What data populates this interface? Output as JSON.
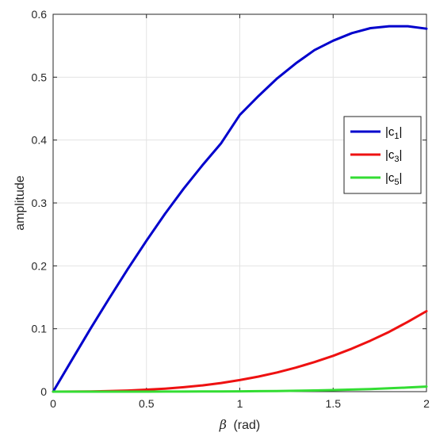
{
  "chart_data": {
    "type": "line",
    "title": "",
    "xlabel_symbol": "β",
    "xlabel": "(rad)",
    "ylabel": "amplitude",
    "xlim": [
      0,
      2
    ],
    "ylim": [
      0,
      0.6
    ],
    "xticks": [
      "0",
      "0.5",
      "1",
      "1.5",
      "2"
    ],
    "yticks": [
      "0",
      "0.1",
      "0.2",
      "0.3",
      "0.4",
      "0.5",
      "0.6"
    ],
    "grid": true,
    "legend_position": "right",
    "series": [
      {
        "name": "|c1|",
        "name_base": "|c",
        "name_sub": "1",
        "name_end": "|",
        "color": "#0000cc",
        "x": [
          0,
          0.1,
          0.2,
          0.3,
          0.4,
          0.5,
          0.6,
          0.7,
          0.8,
          0.9,
          1.0,
          1.1,
          1.2,
          1.3,
          1.4,
          1.5,
          1.6,
          1.7,
          1.8,
          1.9,
          2.0
        ],
        "y": [
          0,
          0.05,
          0.1,
          0.148,
          0.195,
          0.24,
          0.283,
          0.323,
          0.36,
          0.395,
          0.44,
          0.47,
          0.498,
          0.522,
          0.543,
          0.558,
          0.57,
          0.578,
          0.581,
          0.581,
          0.577
        ]
      },
      {
        "name": "|c3|",
        "name_base": "|c",
        "name_sub": "3",
        "name_end": "|",
        "color": "#ee1111",
        "x": [
          0,
          0.1,
          0.2,
          0.3,
          0.4,
          0.5,
          0.6,
          0.7,
          0.8,
          0.9,
          1.0,
          1.1,
          1.2,
          1.3,
          1.4,
          1.5,
          1.6,
          1.7,
          1.8,
          1.9,
          2.0
        ],
        "y": [
          0,
          0.0001,
          0.0003,
          0.0009,
          0.0018,
          0.0031,
          0.0048,
          0.0071,
          0.01,
          0.0138,
          0.0184,
          0.0239,
          0.0305,
          0.0382,
          0.047,
          0.057,
          0.0683,
          0.081,
          0.095,
          0.111,
          0.128
        ]
      },
      {
        "name": "|c5|",
        "name_base": "|c",
        "name_sub": "5",
        "name_end": "|",
        "color": "#33dd33",
        "x": [
          0,
          0.1,
          0.2,
          0.3,
          0.4,
          0.5,
          0.6,
          0.7,
          0.8,
          0.9,
          1.0,
          1.1,
          1.2,
          1.3,
          1.4,
          1.5,
          1.6,
          1.7,
          1.8,
          1.9,
          2.0
        ],
        "y": [
          0,
          0,
          0,
          0,
          0,
          0,
          0.0001,
          0.0001,
          0.0002,
          0.0003,
          0.0005,
          0.0007,
          0.001,
          0.0014,
          0.0019,
          0.0025,
          0.0033,
          0.0042,
          0.0053,
          0.0066,
          0.0081
        ]
      }
    ]
  }
}
